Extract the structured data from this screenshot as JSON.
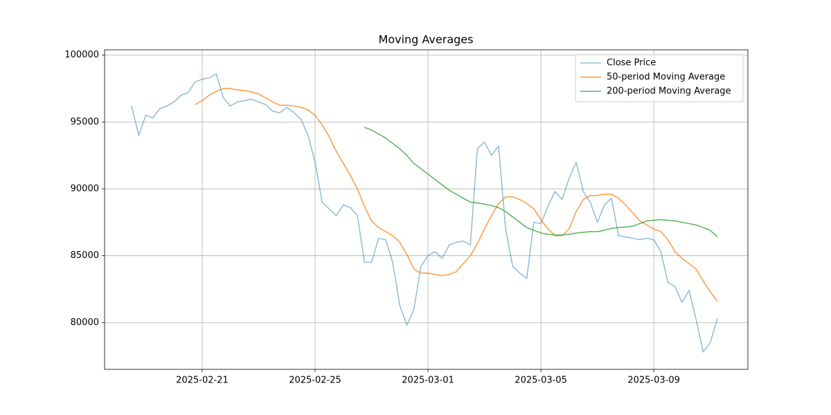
{
  "chart_data": {
    "type": "line",
    "title": "Moving Averages",
    "x": [
      "2025-02-18 12:00",
      "2025-02-18 18:00",
      "2025-02-19 00:00",
      "2025-02-19 06:00",
      "2025-02-19 12:00",
      "2025-02-19 18:00",
      "2025-02-20 00:00",
      "2025-02-20 06:00",
      "2025-02-20 12:00",
      "2025-02-20 18:00",
      "2025-02-21 00:00",
      "2025-02-21 06:00",
      "2025-02-21 12:00",
      "2025-02-21 18:00",
      "2025-02-22 00:00",
      "2025-02-22 06:00",
      "2025-02-22 12:00",
      "2025-02-22 18:00",
      "2025-02-23 00:00",
      "2025-02-23 06:00",
      "2025-02-23 12:00",
      "2025-02-23 18:00",
      "2025-02-24 00:00",
      "2025-02-24 06:00",
      "2025-02-24 12:00",
      "2025-02-24 18:00",
      "2025-02-25 00:00",
      "2025-02-25 06:00",
      "2025-02-25 12:00",
      "2025-02-25 18:00",
      "2025-02-26 00:00",
      "2025-02-26 06:00",
      "2025-02-26 12:00",
      "2025-02-26 18:00",
      "2025-02-27 00:00",
      "2025-02-27 06:00",
      "2025-02-27 12:00",
      "2025-02-27 18:00",
      "2025-02-28 00:00",
      "2025-02-28 06:00",
      "2025-02-28 12:00",
      "2025-02-28 18:00",
      "2025-03-01 00:00",
      "2025-03-01 06:00",
      "2025-03-01 12:00",
      "2025-03-01 18:00",
      "2025-03-02 00:00",
      "2025-03-02 06:00",
      "2025-03-02 12:00",
      "2025-03-02 18:00",
      "2025-03-03 00:00",
      "2025-03-03 06:00",
      "2025-03-03 12:00",
      "2025-03-03 18:00",
      "2025-03-04 00:00",
      "2025-03-04 06:00",
      "2025-03-04 12:00",
      "2025-03-04 18:00",
      "2025-03-05 00:00",
      "2025-03-05 06:00",
      "2025-03-05 12:00",
      "2025-03-05 18:00",
      "2025-03-06 00:00",
      "2025-03-06 06:00",
      "2025-03-06 12:00",
      "2025-03-06 18:00",
      "2025-03-07 00:00",
      "2025-03-07 06:00",
      "2025-03-07 12:00",
      "2025-03-07 18:00",
      "2025-03-08 00:00",
      "2025-03-08 06:00",
      "2025-03-08 12:00",
      "2025-03-08 18:00",
      "2025-03-09 00:00",
      "2025-03-09 06:00",
      "2025-03-09 12:00",
      "2025-03-09 18:00",
      "2025-03-10 00:00",
      "2025-03-10 06:00",
      "2025-03-10 12:00",
      "2025-03-10 18:00",
      "2025-03-11 00:00",
      "2025-03-11 06:00"
    ],
    "series": [
      {
        "name": "Close Price",
        "color": "#1f77b4",
        "alpha": 0.5,
        "values": [
          96200,
          94000,
          95500,
          95300,
          96000,
          96200,
          96500,
          97000,
          97200,
          98000,
          98200,
          98300,
          98600,
          96800,
          96200,
          96500,
          96600,
          96700,
          96500,
          96300,
          95800,
          95700,
          96100,
          95700,
          95200,
          94000,
          92000,
          89000,
          88500,
          88000,
          88800,
          88600,
          88000,
          84500,
          84500,
          86300,
          86200,
          84500,
          81300,
          79800,
          81000,
          84200,
          85000,
          85300,
          84800,
          85800,
          86000,
          86100,
          85800,
          93000,
          93500,
          92500,
          93200,
          87000,
          84200,
          83700,
          83300,
          87500,
          87400,
          88700,
          89800,
          89200,
          90800,
          92000,
          89800,
          89000,
          87500,
          88800,
          89300,
          86500,
          86400,
          86300,
          86200,
          86300,
          86200,
          85300,
          83000,
          82700,
          81500,
          82400,
          80200,
          77800,
          78500,
          80300
        ]
      },
      {
        "name": "50-period Moving Average",
        "color": "#ff7f0e",
        "alpha": 0.8,
        "values": [
          null,
          null,
          null,
          null,
          null,
          null,
          null,
          null,
          null,
          96300,
          96600,
          97000,
          97300,
          97500,
          97500,
          97400,
          97350,
          97250,
          97100,
          96800,
          96500,
          96250,
          96250,
          96200,
          96100,
          95900,
          95500,
          94800,
          93900,
          92800,
          91900,
          91000,
          90000,
          88700,
          87600,
          87100,
          86800,
          86500,
          86000,
          85100,
          84000,
          83700,
          83700,
          83600,
          83500,
          83600,
          83800,
          84400,
          85000,
          85900,
          87000,
          88000,
          88900,
          89400,
          89400,
          89200,
          88900,
          88500,
          87700,
          87000,
          86500,
          86500,
          87000,
          88300,
          89200,
          89500,
          89500,
          89600,
          89600,
          89300,
          88800,
          88200,
          87600,
          87300,
          87000,
          86800,
          86200,
          85300,
          84800,
          84400,
          84000,
          83100,
          82300,
          81600
        ]
      },
      {
        "name": "200-period Moving Average",
        "color": "#2ca02c",
        "alpha": 0.8,
        "values": [
          null,
          null,
          null,
          null,
          null,
          null,
          null,
          null,
          null,
          null,
          null,
          null,
          null,
          null,
          null,
          null,
          null,
          null,
          null,
          null,
          null,
          null,
          null,
          null,
          null,
          null,
          null,
          null,
          null,
          null,
          null,
          null,
          null,
          94600,
          94400,
          94100,
          93800,
          93400,
          93000,
          92500,
          91900,
          91500,
          91100,
          90700,
          90300,
          89900,
          89600,
          89300,
          89000,
          88950,
          88850,
          88750,
          88600,
          88300,
          87900,
          87500,
          87100,
          86900,
          86700,
          86600,
          86550,
          86550,
          86600,
          86700,
          86750,
          86800,
          86800,
          86900,
          87050,
          87100,
          87150,
          87200,
          87400,
          87600,
          87650,
          87700,
          87650,
          87600,
          87500,
          87400,
          87300,
          87100,
          86900,
          86400
        ]
      }
    ],
    "xlim": [
      "2025-02-17 13:00",
      "2025-03-12 08:00"
    ],
    "xticks": [
      "2025-02-21",
      "2025-02-25",
      "2025-03-01",
      "2025-03-05",
      "2025-03-09"
    ],
    "ylim": [
      76500,
      100400
    ],
    "yticks": [
      80000,
      85000,
      90000,
      95000,
      100000
    ],
    "grid": true,
    "legend": "upper right"
  }
}
